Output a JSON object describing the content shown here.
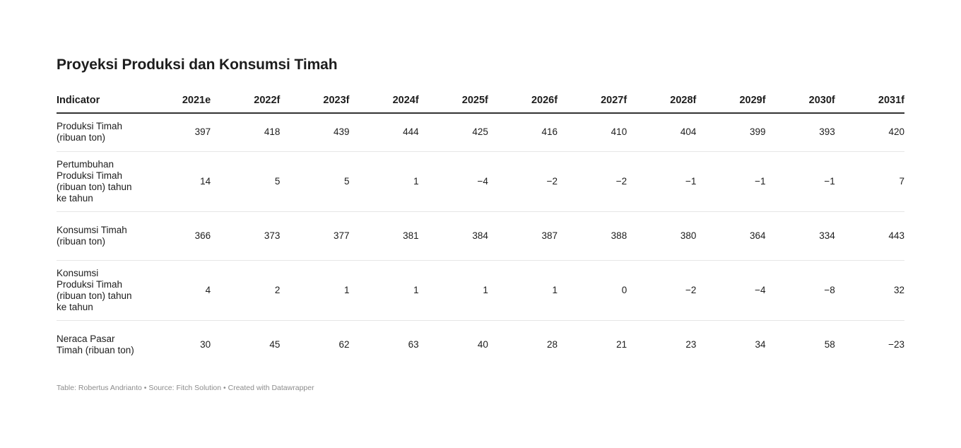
{
  "title": "Proyeksi Produksi dan Konsumsi Timah",
  "footer": {
    "author_label": "Table: Robertus Andrianto",
    "separator": "•",
    "source_label": "Source: Fitch Solution",
    "tool_label": "Created with Datawrapper"
  },
  "chart_data": {
    "type": "table",
    "title": "Proyeksi Produksi dan Konsumsi Timah",
    "columns": [
      "Indicator",
      "2021e",
      "2022f",
      "2023f",
      "2024f",
      "2025f",
      "2026f",
      "2027f",
      "2028f",
      "2029f",
      "2030f",
      "2031f"
    ],
    "rows": [
      {
        "label": "Produksi Timah (ribuan ton)",
        "values": [
          "397",
          "418",
          "439",
          "444",
          "425",
          "416",
          "410",
          "404",
          "399",
          "393",
          "420"
        ]
      },
      {
        "label": "Pertumbuhan Produksi Timah (ribuan ton) tahun ke tahun",
        "values": [
          "14",
          "5",
          "5",
          "1",
          "−4",
          "−2",
          "−2",
          "−1",
          "−1",
          "−1",
          "7"
        ]
      },
      {
        "label": "Konsumsi Timah (ribuan ton)",
        "values": [
          "366",
          "373",
          "377",
          "381",
          "384",
          "387",
          "388",
          "380",
          "364",
          "334",
          "443"
        ]
      },
      {
        "label": "Konsumsi Produksi Timah (ribuan ton) tahun ke tahun",
        "values": [
          "4",
          "2",
          "1",
          "1",
          "1",
          "1",
          "0",
          "−2",
          "−4",
          "−8",
          "32"
        ]
      },
      {
        "label": "Neraca Pasar Timah (ribuan ton)",
        "values": [
          "30",
          "45",
          "62",
          "63",
          "40",
          "28",
          "21",
          "23",
          "34",
          "58",
          "−23"
        ]
      }
    ]
  }
}
